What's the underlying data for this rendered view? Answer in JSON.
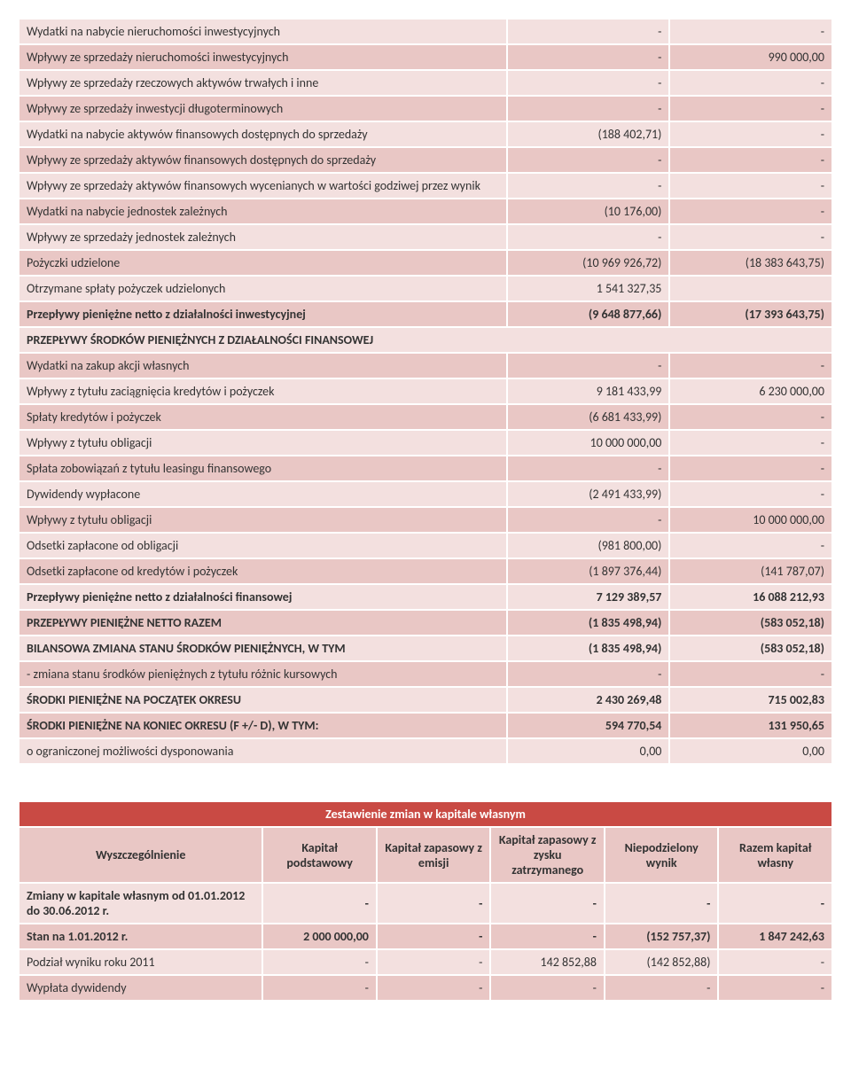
{
  "colors": {
    "odd": "#f3e0df",
    "even": "#e9c7c5",
    "title_bg": "#c94a44",
    "title_fg": "#ffffff",
    "border": "#ffffff"
  },
  "main": {
    "col_widths": [
      "60%",
      "20%",
      "20%"
    ],
    "rows": [
      {
        "label": "Wydatki na nabycie nieruchomości inwestycyjnych",
        "c1": "-",
        "c2": "-",
        "bold": false,
        "shade": "odd"
      },
      {
        "label": "Wpływy ze sprzedaży nieruchomości inwestycyjnych",
        "c1": "-",
        "c2": "990 000,00",
        "bold": false,
        "shade": "even"
      },
      {
        "label": "Wpływy ze sprzedaży rzeczowych aktywów trwałych i inne",
        "c1": "-",
        "c2": "-",
        "bold": false,
        "shade": "odd"
      },
      {
        "label": "Wpływy ze sprzedaży inwestycji długoterminowych",
        "c1": "-",
        "c2": "-",
        "bold": false,
        "shade": "even"
      },
      {
        "label": "Wydatki na nabycie aktywów finansowych dostępnych do sprzedaży",
        "c1": "(188 402,71)",
        "c2": "-",
        "bold": false,
        "shade": "odd"
      },
      {
        "label": "Wpływy ze sprzedaży aktywów finansowych dostępnych do sprzedaży",
        "c1": "-",
        "c2": "-",
        "bold": false,
        "shade": "even"
      },
      {
        "label": "Wpływy ze sprzedaży aktywów finansowych wycenianych w wartości godziwej przez wynik",
        "c1": "-",
        "c2": "-",
        "bold": false,
        "shade": "odd"
      },
      {
        "label": "Wydatki na nabycie jednostek zależnych",
        "c1": "(10 176,00)",
        "c2": "-",
        "bold": false,
        "shade": "even"
      },
      {
        "label": "Wpływy ze sprzedaży jednostek zależnych",
        "c1": "-",
        "c2": "-",
        "bold": false,
        "shade": "odd"
      },
      {
        "label": "Pożyczki udzielone",
        "c1": "(10 969 926,72)",
        "c2": "(18 383 643,75)",
        "bold": false,
        "shade": "even"
      },
      {
        "label": "Otrzymane spłaty pożyczek udzielonych",
        "c1": "1 541 327,35",
        "c2": "",
        "bold": false,
        "shade": "odd"
      },
      {
        "label": "Przepływy pieniężne netto z działalności inwestycyjnej",
        "c1": "(9 648 877,66)",
        "c2": "(17 393 643,75)",
        "bold": true,
        "shade": "even"
      },
      {
        "label": "PRZEPŁYWY ŚRODKÓW PIENIĘŻNYCH Z DZIAŁALNOŚCI FINANSOWEJ",
        "c1": "",
        "c2": "",
        "bold": true,
        "shade": "odd",
        "span": true
      },
      {
        "label": "Wydatki na zakup akcji własnych",
        "c1": "-",
        "c2": "-",
        "bold": false,
        "shade": "even"
      },
      {
        "label": "Wpływy z tytułu zaciągnięcia kredytów i pożyczek",
        "c1": "9 181 433,99",
        "c2": "6 230 000,00",
        "bold": false,
        "shade": "odd"
      },
      {
        "label": "Spłaty kredytów i pożyczek",
        "c1": "(6 681 433,99)",
        "c2": "-",
        "bold": false,
        "shade": "even"
      },
      {
        "label": "Wpływy z tytułu obligacji",
        "c1": "10 000 000,00",
        "c2": "-",
        "bold": false,
        "shade": "odd"
      },
      {
        "label": "Spłata zobowiązań z tytułu leasingu finansowego",
        "c1": "-",
        "c2": "-",
        "bold": false,
        "shade": "even"
      },
      {
        "label": "Dywidendy wypłacone",
        "c1": "(2 491 433,99)",
        "c2": "-",
        "bold": false,
        "shade": "odd"
      },
      {
        "label": "Wpływy z tytułu obligacji",
        "c1": "-",
        "c2": "10 000 000,00",
        "bold": false,
        "shade": "even"
      },
      {
        "label": "Odsetki zapłacone od obligacji",
        "c1": "(981 800,00)",
        "c2": "-",
        "bold": false,
        "shade": "odd"
      },
      {
        "label": "Odsetki zapłacone od kredytów i pożyczek",
        "c1": "(1 897 376,44)",
        "c2": "(141 787,07)",
        "bold": false,
        "shade": "even"
      },
      {
        "label": "Przepływy pieniężne netto z działalności finansowej",
        "c1": "7 129 389,57",
        "c2": "16 088 212,93",
        "bold": true,
        "shade": "odd"
      },
      {
        "label": "PRZEPŁYWY PIENIĘŻNE NETTO RAZEM",
        "c1": "(1 835 498,94)",
        "c2": "(583 052,18)",
        "bold": true,
        "shade": "even"
      },
      {
        "label": "BILANSOWA ZMIANA STANU ŚRODKÓW PIENIĘŻNYCH, W TYM",
        "c1": "(1 835 498,94)",
        "c2": "(583 052,18)",
        "bold": true,
        "shade": "odd"
      },
      {
        "label": "- zmiana stanu środków pieniężnych z tytułu różnic kursowych",
        "c1": "-",
        "c2": "-",
        "bold": false,
        "shade": "even"
      },
      {
        "label": "ŚRODKI PIENIĘŻNE NA POCZĄTEK OKRESU",
        "c1": "2 430 269,48",
        "c2": "715 002,83",
        "bold": true,
        "shade": "odd"
      },
      {
        "label": "ŚRODKI PIENIĘŻNE NA KONIEC OKRESU (F +/- D), W TYM:",
        "c1": "594 770,54",
        "c2": "131 950,65",
        "bold": true,
        "shade": "even"
      },
      {
        "label": "o ograniczonej możliwości dysponowania",
        "c1": "0,00",
        "c2": "0,00",
        "bold": false,
        "shade": "odd"
      }
    ]
  },
  "capital": {
    "title": "Zestawienie zmian w kapitale własnym",
    "headers": [
      "Wyszczególnienie",
      "Kapitał podstawowy",
      "Kapitał zapasowy z emisji",
      "Kapitał zapasowy z zysku zatrzymanego",
      "Niepodzielony wynik",
      "Razem kapitał własny"
    ],
    "col_widths": [
      "30%",
      "14%",
      "14%",
      "14%",
      "14%",
      "14%"
    ],
    "rows": [
      {
        "shade": "odd",
        "bold": true,
        "cells": [
          "Zmiany w kapitale własnym od 01.01.2012 do 30.06.2012 r.",
          "-",
          "-",
          "-",
          "-",
          "-"
        ]
      },
      {
        "shade": "even",
        "bold": true,
        "cells": [
          "Stan na 1.01.2012 r.",
          "2 000 000,00",
          "-",
          "-",
          "(152 757,37)",
          "1 847 242,63"
        ]
      },
      {
        "shade": "odd",
        "bold": false,
        "cells": [
          "Podział wyniku roku 2011",
          "-",
          "-",
          "142 852,88",
          "(142 852,88)",
          "-"
        ]
      },
      {
        "shade": "even",
        "bold": false,
        "cells": [
          "Wypłata dywidendy",
          "-",
          "-",
          "-",
          "-",
          "-"
        ]
      }
    ]
  }
}
